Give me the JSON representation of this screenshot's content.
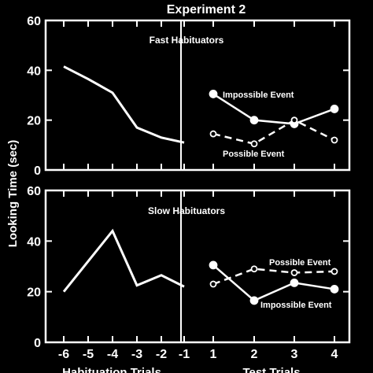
{
  "chart_data": {
    "type": "line",
    "title": "Experiment 2",
    "ylabel": "Looking Time (sec)",
    "xlabels": {
      "habituation": "Habituation Trials",
      "test": "Test Trials"
    },
    "ylim": [
      0,
      60
    ],
    "yticks": [
      0,
      20,
      40,
      60
    ],
    "habituation_ticks": [
      "-6",
      "-5",
      "-4",
      "-3",
      "-2",
      "-1"
    ],
    "test_ticks": [
      "1",
      "2",
      "3",
      "4"
    ],
    "panels": [
      {
        "title": "Fast Habituators",
        "habituation": [
          41.5,
          36.5,
          31,
          17,
          13,
          11
        ],
        "series": [
          {
            "name": "Impossible Event",
            "style": "solid-filled",
            "values": [
              30.5,
              20,
              18.5,
              24.5
            ]
          },
          {
            "name": "Possible Event",
            "style": "dashed-open",
            "values": [
              14.5,
              10.5,
              20,
              12
            ]
          }
        ]
      },
      {
        "title": "Slow Habituators",
        "habituation": [
          20,
          32,
          44,
          22.5,
          26.5,
          22
        ],
        "series": [
          {
            "name": "Impossible Event",
            "style": "solid-filled",
            "values": [
              30.5,
              16.5,
              23.5,
              21
            ]
          },
          {
            "name": "Possible Event",
            "style": "dashed-open",
            "values": [
              23,
              29,
              27.5,
              28
            ]
          }
        ]
      }
    ],
    "colors": {
      "background": "#000000",
      "foreground": "#ffffff"
    }
  }
}
